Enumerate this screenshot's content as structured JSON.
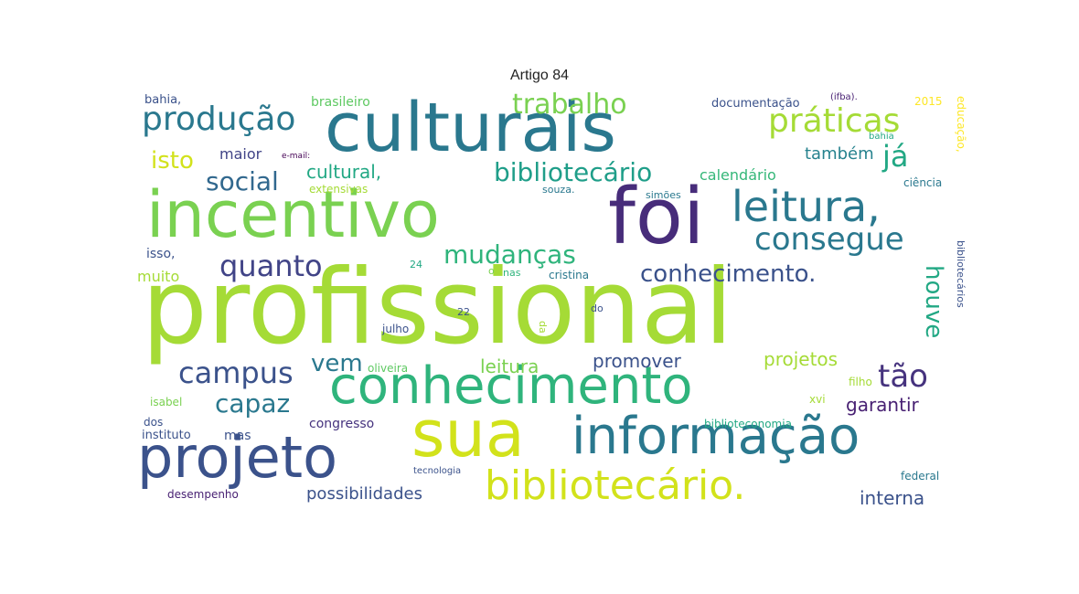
{
  "title": "Artigo 84",
  "words": [
    {
      "text": "profissional",
      "color": "#a5db36"
    },
    {
      "text": "culturais",
      "color": "#2a788e"
    },
    {
      "text": "incentivo",
      "color": "#7ad151"
    },
    {
      "text": "foi",
      "color": "#472c7a"
    },
    {
      "text": "conhecimento",
      "color": "#2fb47c"
    },
    {
      "text": "informação",
      "color": "#2a788e"
    },
    {
      "text": "sua",
      "color": "#d2e21b"
    },
    {
      "text": "projeto",
      "color": "#3b528b"
    },
    {
      "text": "bibliotecário.",
      "color": "#d2e21b"
    },
    {
      "text": "leitura,",
      "color": "#2a788e"
    },
    {
      "text": "práticas",
      "color": "#a5db36"
    },
    {
      "text": "produção",
      "color": "#2a788e"
    },
    {
      "text": "consegue",
      "color": "#2a788e"
    },
    {
      "text": "campus",
      "color": "#3b528b"
    },
    {
      "text": "quanto",
      "color": "#414487"
    },
    {
      "text": "bibliotecário",
      "color": "#1f9e89"
    },
    {
      "text": "trabalho",
      "color": "#7ad151"
    },
    {
      "text": "mudanças",
      "color": "#2fb47c"
    },
    {
      "text": "conhecimento.",
      "color": "#3b528b"
    },
    {
      "text": "já",
      "color": "#22a884"
    },
    {
      "text": "social",
      "color": "#31688e"
    },
    {
      "text": "tão",
      "color": "#46337e"
    },
    {
      "text": "capaz",
      "color": "#2a788e"
    },
    {
      "text": "vem",
      "color": "#2a788e"
    },
    {
      "text": "houve",
      "color": "#22a884"
    },
    {
      "text": "isto",
      "color": "#d2e21b"
    },
    {
      "text": "cultural,",
      "color": "#22a884"
    },
    {
      "text": "leitura",
      "color": "#7ad151"
    },
    {
      "text": "promover",
      "color": "#3b528b"
    },
    {
      "text": "projetos",
      "color": "#a5db36"
    },
    {
      "text": "garantir",
      "color": "#482173"
    },
    {
      "text": "interna",
      "color": "#3b528b"
    },
    {
      "text": "possibilidades",
      "color": "#3b528b"
    },
    {
      "text": "também",
      "color": "#26828e"
    },
    {
      "text": "calendário",
      "color": "#35b779"
    },
    {
      "text": "maior",
      "color": "#414487"
    },
    {
      "text": "muito",
      "color": "#a5db36"
    },
    {
      "text": "isso,",
      "color": "#3b528b"
    },
    {
      "text": "brasileiro",
      "color": "#5ec962"
    },
    {
      "text": "bahia,",
      "color": "#3b528b"
    },
    {
      "text": "documentação",
      "color": "#3b528b"
    },
    {
      "text": "(ifba).",
      "color": "#482173"
    },
    {
      "text": "2015",
      "color": "#fde725"
    },
    {
      "text": "educação,",
      "color": "#fde725"
    },
    {
      "text": "bahia",
      "color": "#22a884"
    },
    {
      "text": "e-mail:",
      "color": "#440154"
    },
    {
      "text": "extensivas",
      "color": "#a5db36"
    },
    {
      "text": "souza.",
      "color": "#2a788e"
    },
    {
      "text": "simões",
      "color": "#2a788e"
    },
    {
      "text": "ciência",
      "color": "#2a788e"
    },
    {
      "text": "cristina",
      "color": "#2a788e"
    },
    {
      "text": "o",
      "color": "#7ad151"
    },
    {
      "text": "nas",
      "color": "#2fb47c"
    },
    {
      "text": "24",
      "color": "#22a884"
    },
    {
      "text": "22",
      "color": "#3b528b"
    },
    {
      "text": "do",
      "color": "#3b528b"
    },
    {
      "text": "da",
      "color": "#a5db36"
    },
    {
      "text": "julho",
      "color": "#3b528b"
    },
    {
      "text": "bibliotecários",
      "color": "#3b528b"
    },
    {
      "text": "oliveira",
      "color": "#5ec962"
    },
    {
      "text": "filho",
      "color": "#a5db36"
    },
    {
      "text": "xvi",
      "color": "#a5db36"
    },
    {
      "text": "isabel",
      "color": "#7ad151"
    },
    {
      "text": "dos",
      "color": "#3b528b"
    },
    {
      "text": "instituto",
      "color": "#3b528b"
    },
    {
      "text": "mas",
      "color": "#3b528b"
    },
    {
      "text": "congresso",
      "color": "#46337e"
    },
    {
      "text": "biblioteconomia",
      "color": "#22a884"
    },
    {
      "text": "tecnologia",
      "color": "#3b528b"
    },
    {
      "text": "federal",
      "color": "#2a788e"
    },
    {
      "text": "desempenho",
      "color": "#482173"
    }
  ]
}
